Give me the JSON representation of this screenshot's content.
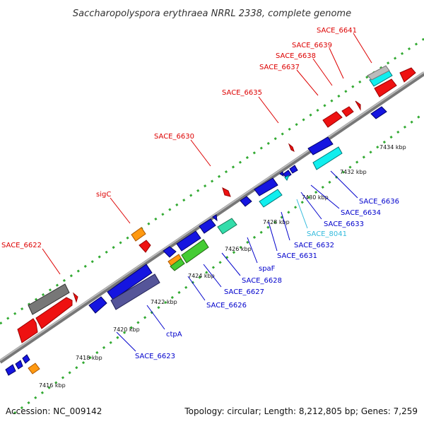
{
  "title": "Saccharopolyspora erythraea NRRL 2338, complete genome",
  "accession": "Accession: NC_009142",
  "topology": "Topology: circular; Length: 8,212,805 bp; Genes: 7,259",
  "colors": {
    "forward_label": "#dd0000",
    "reverse_label": "#0000cc",
    "highlight_label": "#33bbdd",
    "axis": "#888888",
    "ruler_dot": "#33aa33",
    "blue": "#1515e0",
    "red": "#ee1111",
    "cyan": "#11eeee",
    "grey": "#777777",
    "silver": "#bbbbbb",
    "orange": "#ff9911",
    "green": "#44cc33",
    "mint": "#33ddaa",
    "slate": "#555599"
  },
  "ticks": [
    "7416 kbp",
    "7418 kbp",
    "7420 kbp",
    "7422 kbp",
    "7424 kbp",
    "7426 kbp",
    "7428 kbp",
    "7430 kbp",
    "7432 kbp",
    "7434 kbp"
  ],
  "forward_labels": [
    "SACE_6622",
    "sigC",
    "SACE_6630",
    "SACE_6635",
    "SACE_6637",
    "SACE_6638",
    "SACE_6639",
    "SACE_6641"
  ],
  "reverse_labels": [
    "SACE_6623",
    "ctpA",
    "SACE_6626",
    "SACE_6627",
    "SACE_6628",
    "spaF",
    "SACE_6631",
    "SACE_6632",
    "SACE_8041",
    "SACE_6633",
    "SACE_6634",
    "SACE_6636"
  ]
}
